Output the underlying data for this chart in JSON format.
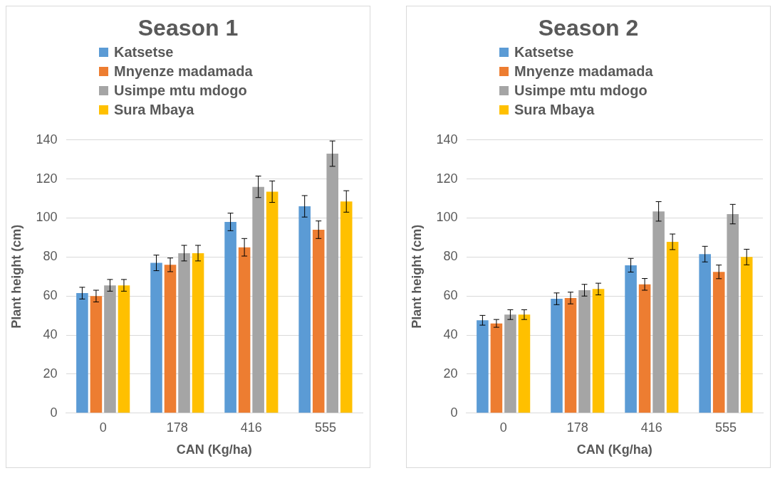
{
  "chart_data": [
    {
      "type": "bar",
      "title": "Season 1",
      "xlabel": "CAN (Kg/ha)",
      "ylabel": "Plant height (cm)",
      "categories": [
        "0",
        "178",
        "416",
        "555"
      ],
      "series": [
        {
          "name": "Katsetse",
          "color": "#5b9bd5",
          "values": [
            61.5,
            77,
            98,
            106
          ],
          "errors": [
            3,
            4,
            4.5,
            5.5
          ]
        },
        {
          "name": "Mnyenze madamada",
          "color": "#ed7d31",
          "values": [
            60,
            76,
            85,
            94
          ],
          "errors": [
            3,
            3.5,
            4.5,
            4.5
          ]
        },
        {
          "name": "Usimpe mtu mdogo",
          "color": "#a5a5a5",
          "values": [
            65.5,
            82,
            116,
            133
          ],
          "errors": [
            3,
            4,
            5.5,
            6.5
          ]
        },
        {
          "name": "Sura Mbaya",
          "color": "#ffc000",
          "values": [
            65.5,
            82,
            113.5,
            108.5
          ],
          "errors": [
            3,
            4,
            5.5,
            5.5
          ]
        }
      ],
      "ylim": [
        0,
        140
      ],
      "yticks": [
        0,
        20,
        40,
        60,
        80,
        100,
        120,
        140
      ],
      "grid": "y",
      "legend": "top"
    },
    {
      "type": "bar",
      "title": "Season 2",
      "xlabel": "CAN (Kg/ha)",
      "ylabel": "Plant height (cm)",
      "categories": [
        "0",
        "178",
        "416",
        "555"
      ],
      "series": [
        {
          "name": "Katsetse",
          "color": "#5b9bd5",
          "values": [
            47.6,
            58.6,
            75.8,
            81.5
          ],
          "errors": [
            2.5,
            3,
            3.5,
            4
          ]
        },
        {
          "name": "Mnyenze madamada",
          "color": "#ed7d31",
          "values": [
            46,
            59,
            66,
            72.4
          ],
          "errors": [
            2,
            3,
            3,
            3.5
          ]
        },
        {
          "name": "Usimpe mtu mdogo",
          "color": "#a5a5a5",
          "values": [
            50.5,
            63,
            103.4,
            102
          ],
          "errors": [
            2.5,
            3,
            5,
            5
          ]
        },
        {
          "name": "Sura Mbaya",
          "color": "#ffc000",
          "values": [
            50.5,
            63.6,
            87.8,
            80
          ],
          "errors": [
            2.5,
            3,
            4,
            4
          ]
        }
      ],
      "ylim": [
        0,
        140
      ],
      "yticks": [
        0,
        20,
        40,
        60,
        80,
        100,
        120,
        140
      ],
      "grid": "y",
      "legend": "top"
    }
  ]
}
